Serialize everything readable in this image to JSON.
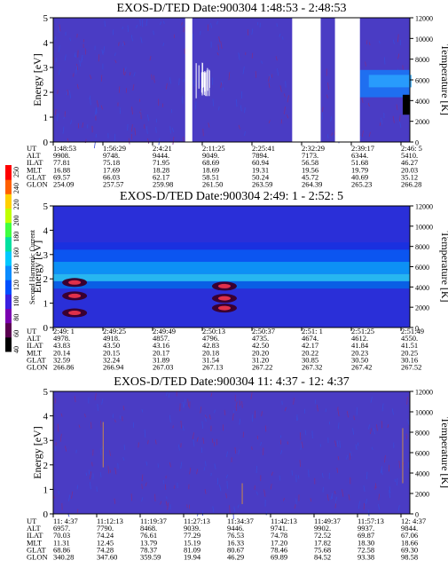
{
  "chart_data": [
    {
      "type": "heatmap",
      "title": "EXOS-D/TED   Date:900304   1:48:53 - 2:48:53",
      "ylabel": "Energy [eV]",
      "y2label": "Temperature [K]",
      "ylim": [
        0,
        5
      ],
      "yticks": [
        "0",
        "1",
        "2",
        "3",
        "4",
        "5"
      ],
      "y2lim": [
        0,
        12000
      ],
      "y2ticks": [
        "0",
        "2000",
        "4000",
        "6000",
        "8000",
        "10000",
        "12000"
      ],
      "ephemeris": {
        "rows": [
          {
            "label": "UT",
            "values": [
              "1:48:53",
              "1:56:29",
              "2:4:21",
              "2:11:25",
              "2:25:41",
              "2:32:29",
              "2:39:17",
              "2:46: 5"
            ]
          },
          {
            "label": "ALT",
            "values": [
              "9908.",
              "9748.",
              "9444.",
              "9049.",
              "7894.",
              "7173.",
              "6344.",
              "5410."
            ]
          },
          {
            "label": "ILAT",
            "values": [
              "77.81",
              "75.18",
              "71.95",
              "68.69",
              "60.94",
              "56.58",
              "51.68",
              "46.27"
            ]
          },
          {
            "label": "MLT",
            "values": [
              "16.88",
              "17.69",
              "18.28",
              "18.69",
              "19.31",
              "19.56",
              "19.79",
              "20.03"
            ]
          },
          {
            "label": "GLAT",
            "values": [
              "69.57",
              "66.03",
              "62.17",
              "58.51",
              "50.24",
              "45.72",
              "40.69",
              "35.12"
            ]
          },
          {
            "label": "GLON",
            "values": [
              "254.09",
              "257.57",
              "259.98",
              "261.50",
              "263.59",
              "264.39",
              "265.23",
              "266.28"
            ]
          }
        ]
      },
      "data_gaps": [
        [
          0.37,
          0.39
        ],
        [
          0.67,
          0.75
        ],
        [
          0.79,
          0.86
        ]
      ]
    },
    {
      "type": "heatmap",
      "title": "EXOS-D/TED   Date:900304   2:49: 1 - 2:52: 5",
      "ylabel": "Energy [eV]",
      "y2label": "Temperature [K]",
      "ylim": [
        0,
        5
      ],
      "yticks": [
        "0",
        "1",
        "2",
        "3",
        "4",
        "5"
      ],
      "y2lim": [
        0,
        12000
      ],
      "y2ticks": [
        "0",
        "2000",
        "4000",
        "6000",
        "8000",
        "10000",
        "12000"
      ],
      "colorbar": {
        "label": "Second Harmonic Current",
        "ticks": [
          "40",
          "60",
          "80",
          "100",
          "120",
          "140",
          "160",
          "180",
          "200",
          "220",
          "240",
          "250"
        ]
      },
      "ephemeris": {
        "rows": [
          {
            "label": "UT",
            "values": [
              "2:49: 1",
              "2:49:25",
              "2:49:49",
              "2:50:13",
              "2:50:37",
              "2:51: 1",
              "2:51:25",
              "2:51:49"
            ]
          },
          {
            "label": "ALT",
            "values": [
              "4978.",
              "4918.",
              "4857.",
              "4796.",
              "4735.",
              "4674.",
              "4612.",
              "4550."
            ]
          },
          {
            "label": "ILAT",
            "values": [
              "43.83",
              "43.50",
              "43.16",
              "42.83",
              "42.50",
              "42.17",
              "41.84",
              "41.51"
            ]
          },
          {
            "label": "MLT",
            "values": [
              "20.14",
              "20.15",
              "20.17",
              "20.18",
              "20.20",
              "20.22",
              "20.23",
              "20.25"
            ]
          },
          {
            "label": "GLAT",
            "values": [
              "32.59",
              "32.24",
              "31.89",
              "31.54",
              "31.20",
              "30.85",
              "30.50",
              "30.16"
            ]
          },
          {
            "label": "GLON",
            "values": [
              "266.86",
              "266.94",
              "267.03",
              "267.13",
              "267.22",
              "267.32",
              "267.42",
              "267.52"
            ]
          }
        ]
      }
    },
    {
      "type": "heatmap",
      "title": "EXOS-D/TED   Date:900304  11: 4:37 - 12: 4:37",
      "ylabel": "Energy [eV]",
      "y2label": "Temperature [K]",
      "ylim": [
        0,
        5
      ],
      "yticks": [
        "0",
        "1",
        "2",
        "3",
        "4",
        "5"
      ],
      "y2lim": [
        0,
        12000
      ],
      "y2ticks": [
        "0",
        "2000",
        "4000",
        "6000",
        "8000",
        "10000",
        "12000"
      ],
      "ephemeris": {
        "rows": [
          {
            "label": "UT",
            "values": [
              "11: 4:37",
              "11:12:13",
              "11:19:37",
              "11:27:13",
              "11:34:37",
              "11:42:13",
              "11:49:37",
              "11:57:13",
              "12: 4:37"
            ]
          },
          {
            "label": "ALT",
            "values": [
              "6957.",
              "7790.",
              "8468.",
              "9039.",
              "9446.",
              "9741.",
              "9902.",
              "9937.",
              "9844."
            ]
          },
          {
            "label": "ILAT",
            "values": [
              "70.03",
              "74.24",
              "76.61",
              "77.29",
              "76.53",
              "74.78",
              "72.52",
              "69.87",
              "67.06"
            ]
          },
          {
            "label": "MLT",
            "values": [
              "11.31",
              "12.45",
              "13.79",
              "15.19",
              "16.33",
              "17.20",
              "17.82",
              "18.30",
              "18.66"
            ]
          },
          {
            "label": "GLAT",
            "values": [
              "68.86",
              "74.28",
              "78.37",
              "81.09",
              "80.67",
              "78.46",
              "75.68",
              "72.58",
              "69.30"
            ]
          },
          {
            "label": "GLON",
            "values": [
              "340.28",
              "347.60",
              "359.59",
              "19.94",
              "46.29",
              "69.89",
              "84.52",
              "93.38",
              "98.58"
            ]
          }
        ]
      }
    }
  ]
}
